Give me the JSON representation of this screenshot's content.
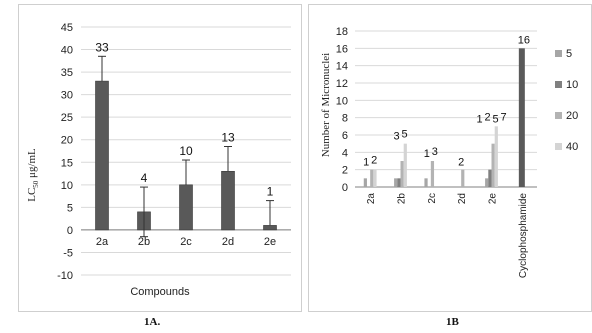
{
  "captions": {
    "a": "1A.",
    "b": "1B"
  },
  "colors": {
    "bar_a": "#595959",
    "grid": "#d9d9d9",
    "axis": "#808080",
    "s5": "#a6a6a6",
    "s10": "#808080",
    "s20": "#b3b3b3",
    "s40": "#d4d4d4",
    "cyclo": "#5a5a5a"
  },
  "chart_data": [
    {
      "type": "bar",
      "categories": [
        "2a",
        "2b",
        "2c",
        "2d",
        "2e"
      ],
      "values": [
        33,
        4,
        10,
        13,
        1
      ],
      "error_upper": [
        38.5,
        9.5,
        15.5,
        18.5,
        6.5
      ],
      "error_lower": [
        33,
        -1.5,
        10,
        13,
        1
      ],
      "data_labels": [
        "33",
        "4",
        "10",
        "13",
        "1"
      ],
      "ylabel": "LC50 μg/mL",
      "ylabel_main": "LC",
      "ylabel_sub": "50",
      "ylabel_unit": " μg/mL",
      "xlabel": "Compounds",
      "ylim": [
        -10,
        45
      ],
      "yticks": [
        -10,
        -5,
        0,
        5,
        10,
        15,
        20,
        25,
        30,
        35,
        40,
        45
      ],
      "grid": true
    },
    {
      "type": "bar",
      "categories": [
        "2a",
        "2b",
        "2c",
        "2d",
        "2e",
        "Cyclophosphamide"
      ],
      "series": [
        {
          "name": "5",
          "values": [
            1,
            1,
            1,
            0,
            1,
            null
          ]
        },
        {
          "name": "10",
          "values": [
            0,
            1,
            0,
            0,
            2,
            null
          ]
        },
        {
          "name": "20",
          "values": [
            2,
            3,
            3,
            2,
            5,
            null
          ]
        },
        {
          "name": "40",
          "values": [
            2,
            5,
            0,
            0,
            7,
            null
          ]
        }
      ],
      "control": {
        "category": "Cyclophosphamide",
        "value": 16,
        "label": "16"
      },
      "data_labels": [
        {
          "category": "2a",
          "labels": [
            "1",
            "2"
          ]
        },
        {
          "category": "2b",
          "labels": [
            "3",
            "5"
          ]
        },
        {
          "category": "2c",
          "labels": [
            "1",
            "3"
          ]
        },
        {
          "category": "2d",
          "labels": [
            "2"
          ]
        },
        {
          "category": "2e",
          "labels": [
            "1",
            "2",
            "5",
            "7"
          ]
        },
        {
          "category": "Cyclophosphamide",
          "labels": [
            "16"
          ]
        }
      ],
      "ylabel": "Number of Micronuclei",
      "ylim": [
        0,
        18
      ],
      "yticks": [
        0,
        2,
        4,
        6,
        8,
        10,
        12,
        14,
        16,
        18
      ],
      "legend": [
        "5",
        "10",
        "20",
        "40"
      ],
      "legend_position": "right",
      "grid": true
    }
  ]
}
